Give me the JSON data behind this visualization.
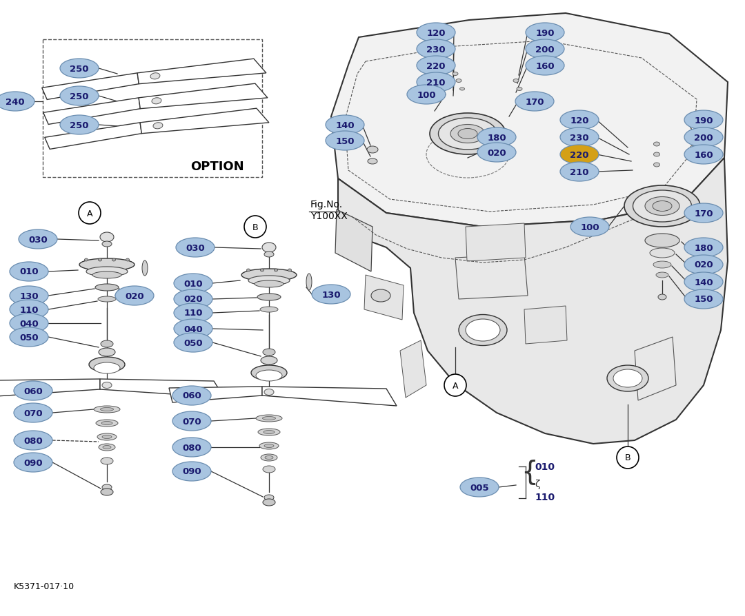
{
  "bg_color": "#ffffff",
  "label_bg_color": "#a8c4e0",
  "label_text_color": "#1a1a6e",
  "special_label_bg": "#d4a017",
  "special_label_text": "#1a1a6e",
  "fig_no_text": "Fig.No.\nY100XX",
  "footer_text": "K5371-017·10",
  "option_text": "OPTION"
}
